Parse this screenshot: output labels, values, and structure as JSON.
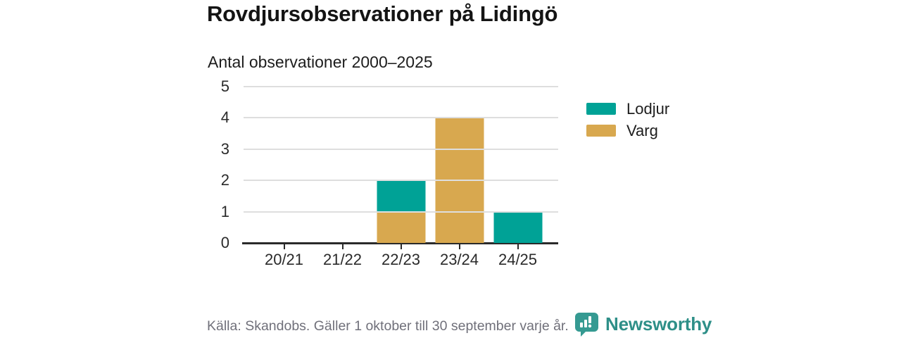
{
  "chart_data": {
    "type": "bar",
    "stacked": true,
    "title": "Rovdjursobservationer på Lidingö",
    "subtitle": "Antal observationer 2000–2025",
    "categories": [
      "20/21",
      "21/22",
      "22/23",
      "23/24",
      "24/25"
    ],
    "series": [
      {
        "name": "Lodjur",
        "color": "#00a296",
        "values": [
          0,
          0,
          1,
          0,
          1
        ]
      },
      {
        "name": "Varg",
        "color": "#d8a84f",
        "values": [
          0,
          0,
          1,
          4,
          0
        ]
      }
    ],
    "stack_order_bottom_to_top": [
      "Varg",
      "Lodjur"
    ],
    "xlabel": "",
    "ylabel": "",
    "ylim": [
      0,
      5
    ],
    "yticks": [
      0,
      1,
      2,
      3,
      4,
      5
    ],
    "grid": true,
    "legend_position": "right"
  },
  "colors": {
    "lodjur": "#00a296",
    "varg": "#d8a84f",
    "gridline": "#dedede",
    "axis": "#2a2a2a",
    "footer_text": "#70707a",
    "brand": "#2e8f88"
  },
  "footer": {
    "source": "Källa: Skandobs. Gäller 1 oktober till 30 september varje år.",
    "brand": "Newsworthy",
    "brand_icon": "speech-bubble-bar-chart-icon"
  }
}
